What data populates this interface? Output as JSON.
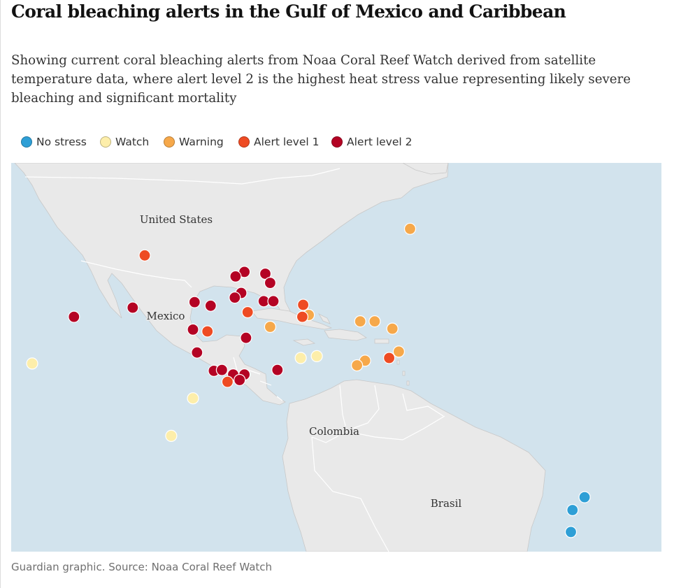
{
  "title": "Coral bleaching alerts in the Gulf of Mexico and Caribbean",
  "subtitle": "Showing current coral bleaching alerts from Noaa Coral Reef Watch derived from satellite temperature data, where alert level 2 is the highest heat stress value representing likely severe bleaching and significant mortality",
  "legend": [
    {
      "label": "No stress",
      "color": "#2e9fd6"
    },
    {
      "label": "Watch",
      "color": "#fdeeaa"
    },
    {
      "label": "Warning",
      "color": "#f6a84a"
    },
    {
      "label": "Alert level 1",
      "color": "#ee4b23"
    },
    {
      "label": "Alert level 2",
      "color": "#b40324"
    }
  ],
  "map": {
    "ocean_color": "#d2e3ed",
    "land_color": "#e9e9e9",
    "border_color": "#ffffff",
    "country_labels": {
      "united_states": "United States",
      "mexico": "Mexico",
      "colombia": "Colombia",
      "brasil": "Brasil"
    },
    "stations": [
      {
        "level": "Warning",
        "lat": 29.9,
        "lon": -60.0
      },
      {
        "level": "Alert level 1",
        "lat": 27.0,
        "lon": -93.0
      },
      {
        "level": "Alert level 2",
        "lat": 25.2,
        "lon": -80.6
      },
      {
        "level": "Alert level 2",
        "lat": 24.7,
        "lon": -81.7
      },
      {
        "level": "Alert level 2",
        "lat": 25.0,
        "lon": -78.0
      },
      {
        "level": "Alert level 2",
        "lat": 24.0,
        "lon": -77.4
      },
      {
        "level": "Alert level 2",
        "lat": 22.9,
        "lon": -81.0
      },
      {
        "level": "Alert level 2",
        "lat": 22.4,
        "lon": -81.8
      },
      {
        "level": "Alert level 2",
        "lat": 21.9,
        "lon": -86.8
      },
      {
        "level": "Alert level 2",
        "lat": 21.5,
        "lon": -84.8
      },
      {
        "level": "Alert level 2",
        "lat": 22.0,
        "lon": -78.2
      },
      {
        "level": "Alert level 2",
        "lat": 22.0,
        "lon": -77.0
      },
      {
        "level": "Alert level 2",
        "lat": 21.3,
        "lon": -94.5
      },
      {
        "level": "Alert level 1",
        "lat": 21.6,
        "lon": -73.3
      },
      {
        "level": "Alert level 1",
        "lat": 20.8,
        "lon": -80.2
      },
      {
        "level": "Warning",
        "lat": 20.5,
        "lon": -72.6
      },
      {
        "level": "Alert level 1",
        "lat": 20.3,
        "lon": -73.4
      },
      {
        "level": "Warning",
        "lat": 19.8,
        "lon": -66.2
      },
      {
        "level": "Warning",
        "lat": 19.8,
        "lon": -64.4
      },
      {
        "level": "Warning",
        "lat": 19.2,
        "lon": -77.4
      },
      {
        "level": "Warning",
        "lat": 19.0,
        "lon": -62.2
      },
      {
        "level": "Alert level 2",
        "lat": 18.9,
        "lon": -87.0
      },
      {
        "level": "Alert level 1",
        "lat": 18.7,
        "lon": -85.2
      },
      {
        "level": "Alert level 2",
        "lat": 18.0,
        "lon": -80.4
      },
      {
        "level": "Alert level 2",
        "lat": 16.4,
        "lon": -86.5
      },
      {
        "level": "Warning",
        "lat": 16.5,
        "lon": -61.4
      },
      {
        "level": "Alert level 1",
        "lat": 15.8,
        "lon": -62.6
      },
      {
        "level": "Watch",
        "lat": 15.8,
        "lon": -73.6
      },
      {
        "level": "Watch",
        "lat": 16.0,
        "lon": -71.6
      },
      {
        "level": "Warning",
        "lat": 15.5,
        "lon": -65.6
      },
      {
        "level": "Warning",
        "lat": 15.0,
        "lon": -66.6
      },
      {
        "level": "Alert level 2",
        "lat": 14.4,
        "lon": -84.4
      },
      {
        "level": "Alert level 2",
        "lat": 14.5,
        "lon": -83.4
      },
      {
        "level": "Alert level 2",
        "lat": 14.5,
        "lon": -76.5
      },
      {
        "level": "Alert level 2",
        "lat": 14.0,
        "lon": -80.6
      },
      {
        "level": "Alert level 2",
        "lat": 14.0,
        "lon": -82.0
      },
      {
        "level": "Alert level 2",
        "lat": 13.4,
        "lon": -81.2
      },
      {
        "level": "Alert level 1",
        "lat": 13.2,
        "lon": -82.7
      },
      {
        "level": "Watch",
        "lat": 15.2,
        "lon": -107.0
      },
      {
        "level": "Watch",
        "lat": 11.4,
        "lon": -87.0
      },
      {
        "level": "Watch",
        "lat": 7.3,
        "lon": -89.7
      },
      {
        "level": "Alert level 2",
        "lat": 20.3,
        "lon": -101.8
      },
      {
        "level": "No stress",
        "lat": 0.6,
        "lon": -38.3
      },
      {
        "level": "No stress",
        "lat": -0.8,
        "lon": -39.8
      },
      {
        "level": "No stress",
        "lat": -3.2,
        "lon": -40.0
      }
    ]
  },
  "source": "Guardian graphic. Source: Noaa Coral Reef Watch"
}
